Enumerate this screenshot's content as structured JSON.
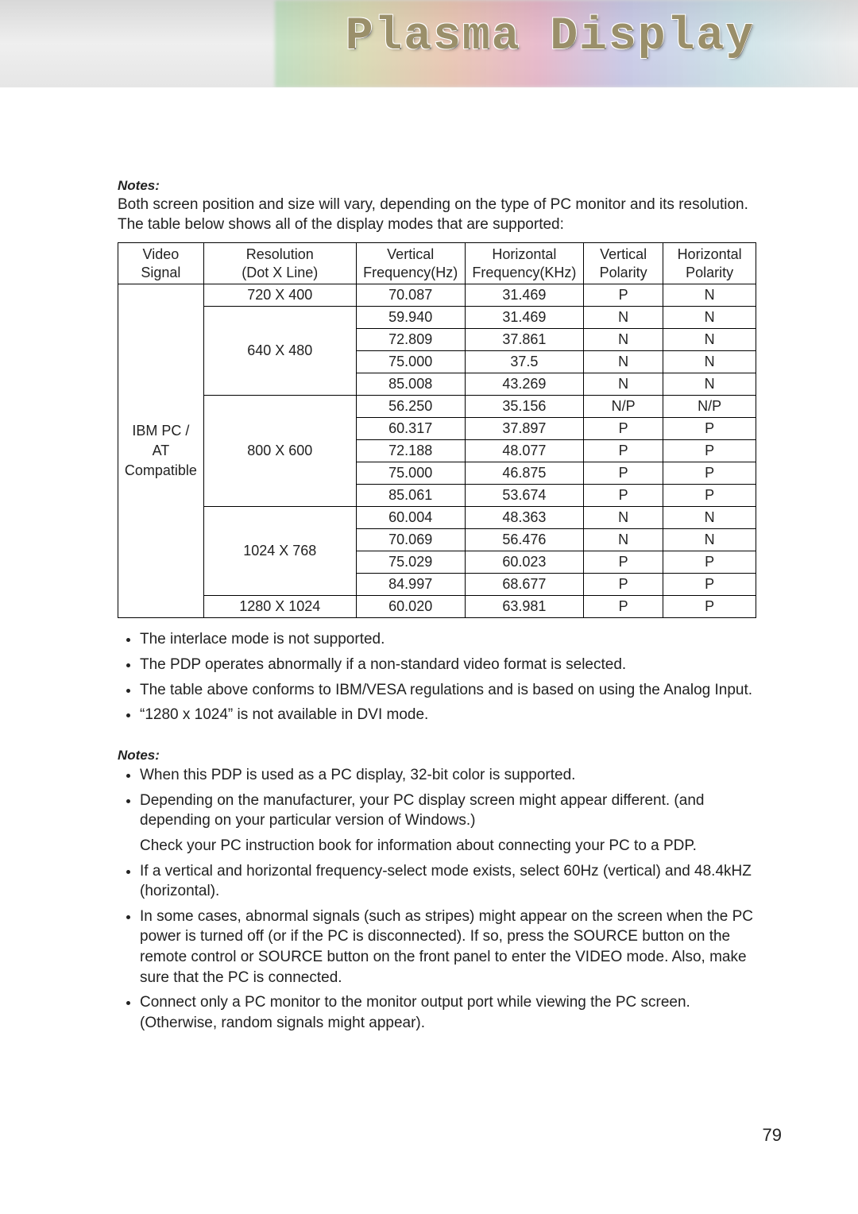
{
  "banner": {
    "title": "Plasma Display",
    "title_color": "#9a8f6a",
    "title_fontsize": 58,
    "bg_gradient_top": "#d8d8d8",
    "bg_gradient_bottom": "#e6e6e6"
  },
  "notes1": {
    "label": "Notes:",
    "line1": "Both screen position and size will vary, depending on the type of PC monitor and its resolution.",
    "line2": "The table below shows all of the display modes that are supported:"
  },
  "table": {
    "columns": {
      "c0a": "Video Signal",
      "c1a": "Resolution",
      "c1b": "(Dot X Line)",
      "c2a": "Vertical",
      "c2b": "Frequency(Hz)",
      "c3a": "Horizontal",
      "c3b": "Frequency(KHz)",
      "c4a": "Vertical",
      "c4b": "Polarity",
      "c5a": "Horizontal",
      "c5b": "Polarity"
    },
    "video_signal_a": "IBM PC / AT",
    "video_signal_b": "Compatible",
    "groups": [
      {
        "resolution": "720 X 400",
        "rows": [
          {
            "vf": "70.087",
            "hf": "31.469",
            "vp": "P",
            "hp": "N"
          }
        ]
      },
      {
        "resolution": "640 X 480",
        "rows": [
          {
            "vf": "59.940",
            "hf": "31.469",
            "vp": "N",
            "hp": "N"
          },
          {
            "vf": "72.809",
            "hf": "37.861",
            "vp": "N",
            "hp": "N"
          },
          {
            "vf": "75.000",
            "hf": "37.5",
            "vp": "N",
            "hp": "N"
          },
          {
            "vf": "85.008",
            "hf": "43.269",
            "vp": "N",
            "hp": "N"
          }
        ]
      },
      {
        "resolution": "800 X 600",
        "rows": [
          {
            "vf": "56.250",
            "hf": "35.156",
            "vp": "N/P",
            "hp": "N/P"
          },
          {
            "vf": "60.317",
            "hf": "37.897",
            "vp": "P",
            "hp": "P"
          },
          {
            "vf": "72.188",
            "hf": "48.077",
            "vp": "P",
            "hp": "P"
          },
          {
            "vf": "75.000",
            "hf": "46.875",
            "vp": "P",
            "hp": "P"
          },
          {
            "vf": "85.061",
            "hf": "53.674",
            "vp": "P",
            "hp": "P"
          }
        ]
      },
      {
        "resolution": "1024 X 768",
        "rows": [
          {
            "vf": "60.004",
            "hf": "48.363",
            "vp": "N",
            "hp": "N"
          },
          {
            "vf": "70.069",
            "hf": "56.476",
            "vp": "N",
            "hp": "N"
          },
          {
            "vf": "75.029",
            "hf": "60.023",
            "vp": "P",
            "hp": "P"
          },
          {
            "vf": "84.997",
            "hf": "68.677",
            "vp": "P",
            "hp": "P"
          }
        ]
      },
      {
        "resolution": "1280 X 1024",
        "rows": [
          {
            "vf": "60.020",
            "hf": "63.981",
            "vp": "P",
            "hp": "P"
          }
        ]
      }
    ],
    "col_widths_pct": [
      12,
      23,
      16,
      17,
      12,
      14
    ],
    "border_color": "#000000",
    "fontsize": 18
  },
  "bullets1": {
    "b0": "The interlace mode is not supported.",
    "b1": "The PDP operates abnormally if a non-standard video format is selected.",
    "b2": "The table above conforms to IBM/VESA regulations and is based on using the Analog Input.",
    "b3": "“1280 x 1024” is not available in DVI mode."
  },
  "notes2": {
    "label": "Notes:"
  },
  "bullets2": {
    "b0": "When this PDP is used as a PC display, 32-bit color is supported.",
    "b1": "Depending on the manufacturer, your PC display screen might appear different. (and depending on your particular version of Windows.)",
    "b1b": "Check your PC instruction book for information about connecting your PC to a PDP.",
    "b2": "If a vertical and horizontal frequency-select mode exists, select 60Hz (vertical) and 48.4kHZ (horizontal).",
    "b3": "In some cases, abnormal signals (such as stripes) might appear on the screen when the PC power is turned off (or if the PC is disconnected). If so, press the SOURCE button on the remote control or SOURCE button on the front panel to enter the VIDEO mode. Also, make sure that the PC is connected.",
    "b4": "Connect only a PC monitor to the monitor output port while viewing the PC screen. (Otherwise, random signals might appear)."
  },
  "page_number": "79"
}
